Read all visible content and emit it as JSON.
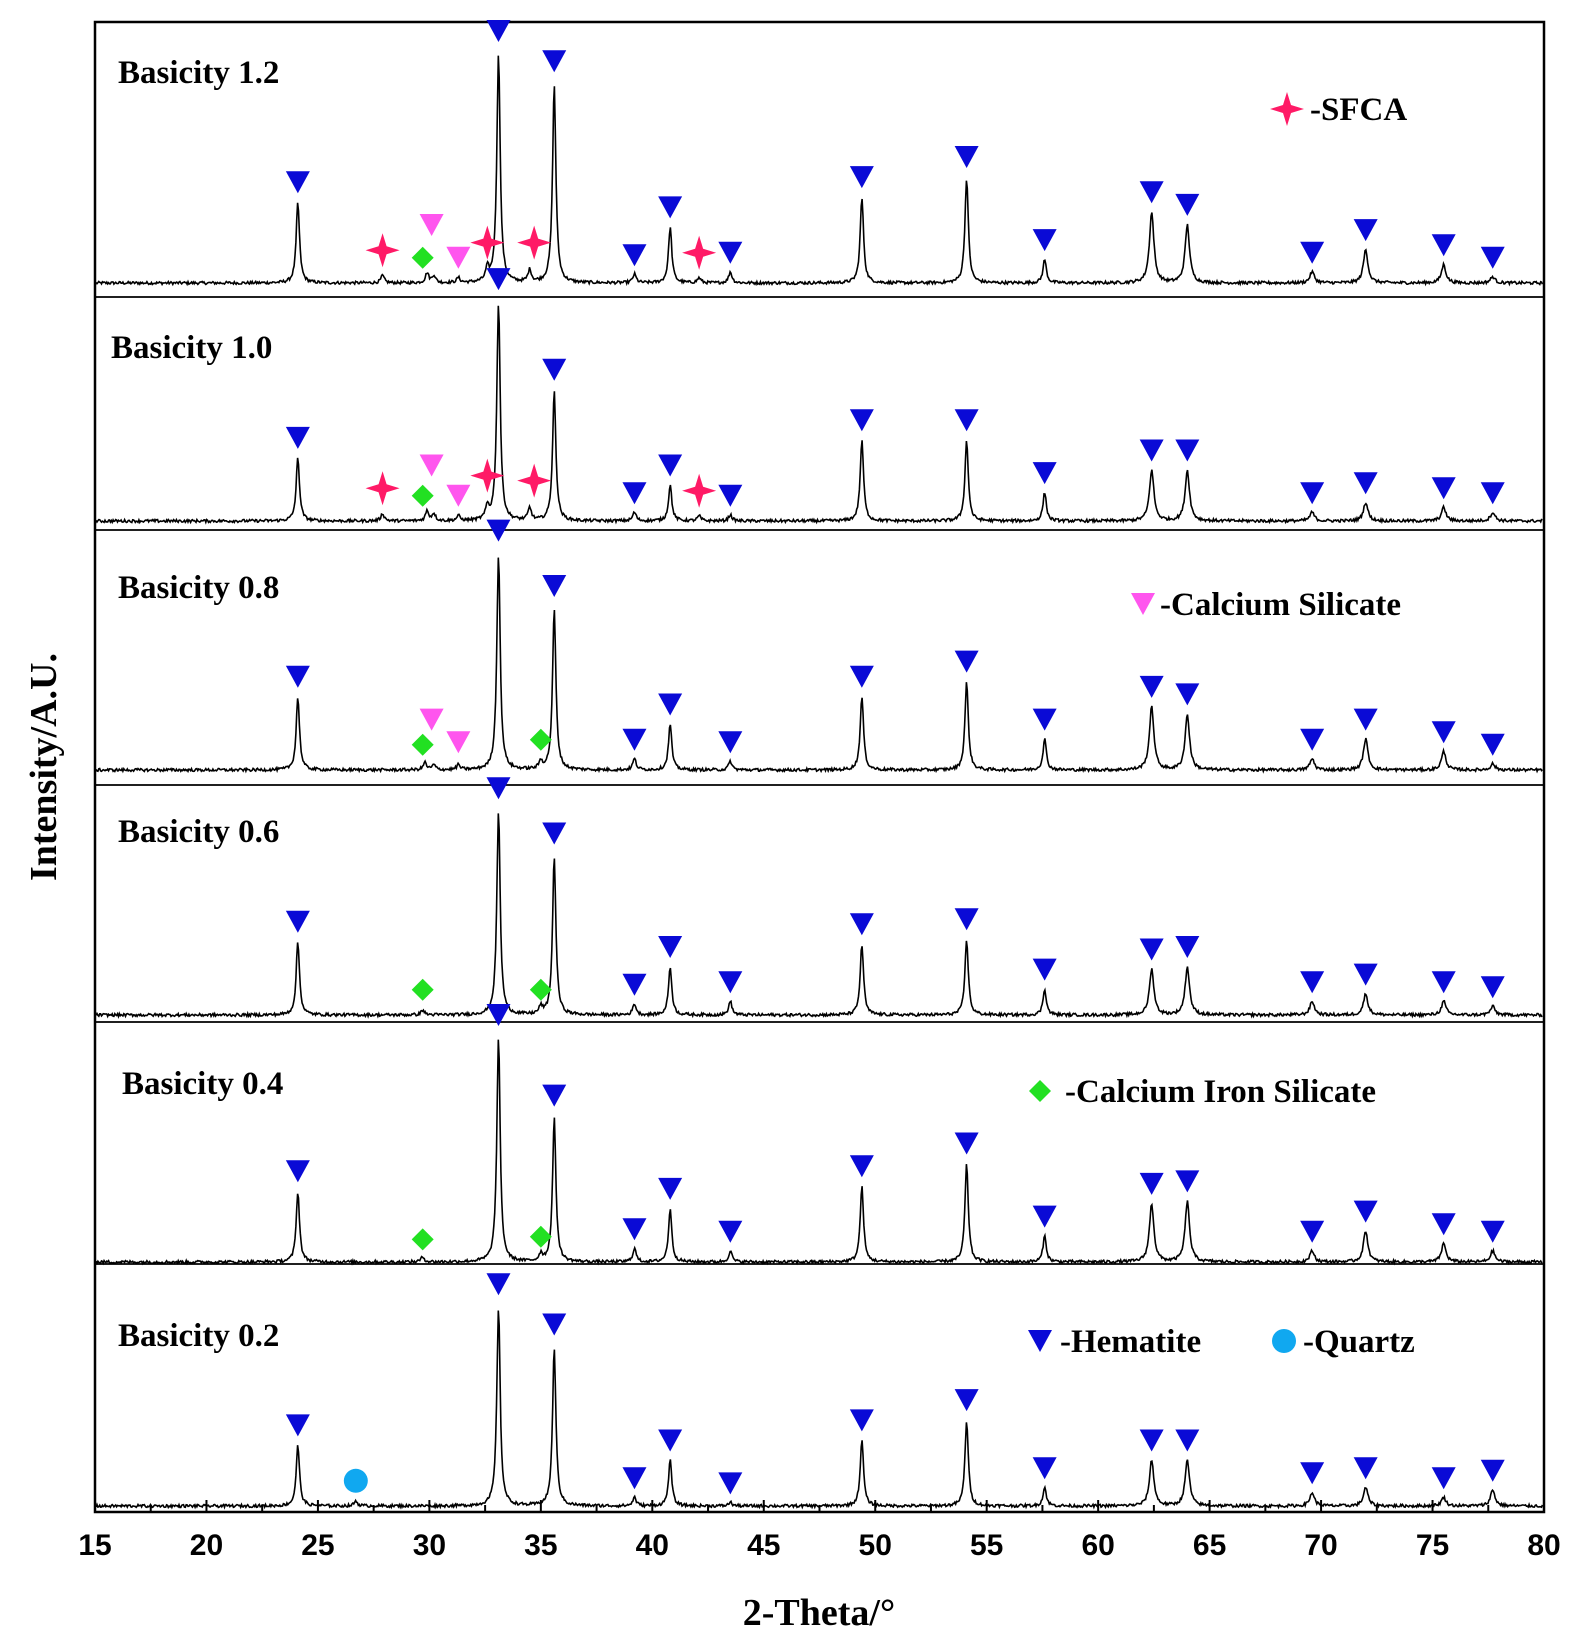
{
  "chart_data": {
    "type": "line",
    "title": "",
    "xlabel": "2-Theta/°",
    "ylabel": "Intensity/A.U.",
    "xlim": [
      15,
      80
    ],
    "xticks": [
      15,
      20,
      25,
      30,
      35,
      40,
      45,
      50,
      55,
      60,
      65,
      70,
      75,
      80
    ],
    "legend": [
      {
        "phase": "SFCA",
        "text": "-SFCA"
      },
      {
        "phase": "calcium_silicate",
        "text": "-Calcium Silicate"
      },
      {
        "phase": "calcium_iron_silicate",
        "text": "-Calcium Iron  Silicate"
      },
      {
        "phase": "hematite",
        "text": "-Hematite"
      },
      {
        "phase": "quartz",
        "text": "-Quartz"
      }
    ],
    "colors": {
      "line": "#000000",
      "hematite": "#0a0ad6",
      "sfca": "#ff1a66",
      "calcium_silicate": "#ff55ee",
      "calcium_iron_silicate": "#22e022",
      "quartz": "#10a8f0"
    },
    "phase_peaks": {
      "hematite": [
        24.1,
        33.1,
        35.6,
        39.2,
        40.8,
        43.5,
        49.4,
        54.1,
        57.6,
        62.4,
        64.0,
        69.6,
        72.0,
        75.5,
        77.7
      ],
      "SFCA": [
        27.9,
        32.6,
        34.7,
        42.1
      ],
      "calcium_silicate": [
        30.1,
        31.3
      ],
      "calcium_iron_silicate": [
        29.7,
        35.0
      ],
      "quartz": [
        26.7
      ]
    },
    "hematite_rel_intensity": [
      0.33,
      1.0,
      0.8,
      0.04,
      0.27,
      0.03,
      0.4,
      0.42,
      0.07,
      0.28,
      0.2,
      0.03,
      0.08,
      0.04,
      0.02
    ],
    "series": [
      {
        "name": "Basicity 1.2",
        "label": "Basicity 1.2",
        "minor_peaks": [
          [
            27.9,
            0.03
          ],
          [
            29.9,
            0.04
          ],
          [
            30.2,
            0.03
          ],
          [
            31.3,
            0.02
          ],
          [
            32.6,
            0.05
          ],
          [
            34.5,
            0.05
          ],
          [
            42.1,
            0.02
          ]
        ],
        "markers": [
          {
            "phase": "hematite",
            "x": 24.1,
            "h": 0.4
          },
          {
            "phase": "hematite",
            "x": 33.1,
            "h": 1.0
          },
          {
            "phase": "hematite",
            "x": 35.6,
            "h": 0.88
          },
          {
            "phase": "hematite",
            "x": 39.2,
            "h": 0.11
          },
          {
            "phase": "hematite",
            "x": 40.8,
            "h": 0.3
          },
          {
            "phase": "hematite",
            "x": 43.5,
            "h": 0.12
          },
          {
            "phase": "hematite",
            "x": 49.4,
            "h": 0.42
          },
          {
            "phase": "hematite",
            "x": 54.1,
            "h": 0.5
          },
          {
            "phase": "hematite",
            "x": 57.6,
            "h": 0.17
          },
          {
            "phase": "hematite",
            "x": 62.4,
            "h": 0.36
          },
          {
            "phase": "hematite",
            "x": 64.0,
            "h": 0.31
          },
          {
            "phase": "hematite",
            "x": 69.6,
            "h": 0.12
          },
          {
            "phase": "hematite",
            "x": 72.0,
            "h": 0.21
          },
          {
            "phase": "hematite",
            "x": 75.5,
            "h": 0.15
          },
          {
            "phase": "hematite",
            "x": 77.7,
            "h": 0.1
          },
          {
            "phase": "SFCA",
            "x": 27.9,
            "h": 0.13
          },
          {
            "phase": "SFCA",
            "x": 32.6,
            "h": 0.16
          },
          {
            "phase": "SFCA",
            "x": 34.7,
            "h": 0.16
          },
          {
            "phase": "SFCA",
            "x": 42.1,
            "h": 0.12
          },
          {
            "phase": "calcium_silicate",
            "x": 30.1,
            "h": 0.23
          },
          {
            "phase": "calcium_silicate",
            "x": 31.3,
            "h": 0.1
          },
          {
            "phase": "calcium_iron_silicate",
            "x": 29.7,
            "h": 0.1
          }
        ]
      },
      {
        "name": "Basicity 1.0",
        "label": "Basicity 1.0",
        "minor_peaks": [
          [
            27.9,
            0.03
          ],
          [
            29.9,
            0.04
          ],
          [
            30.2,
            0.03
          ],
          [
            31.3,
            0.02
          ],
          [
            32.6,
            0.05
          ],
          [
            34.5,
            0.05
          ],
          [
            42.1,
            0.02
          ]
        ],
        "markers": [
          {
            "phase": "hematite",
            "x": 24.1,
            "h": 0.33
          },
          {
            "phase": "hematite",
            "x": 33.1,
            "h": 0.96
          },
          {
            "phase": "hematite",
            "x": 35.6,
            "h": 0.6
          },
          {
            "phase": "hematite",
            "x": 39.2,
            "h": 0.11
          },
          {
            "phase": "hematite",
            "x": 40.8,
            "h": 0.22
          },
          {
            "phase": "hematite",
            "x": 43.5,
            "h": 0.1
          },
          {
            "phase": "hematite",
            "x": 49.4,
            "h": 0.4
          },
          {
            "phase": "hematite",
            "x": 54.1,
            "h": 0.4
          },
          {
            "phase": "hematite",
            "x": 57.6,
            "h": 0.19
          },
          {
            "phase": "hematite",
            "x": 62.4,
            "h": 0.28
          },
          {
            "phase": "hematite",
            "x": 64.0,
            "h": 0.28
          },
          {
            "phase": "hematite",
            "x": 69.6,
            "h": 0.11
          },
          {
            "phase": "hematite",
            "x": 72.0,
            "h": 0.15
          },
          {
            "phase": "hematite",
            "x": 75.5,
            "h": 0.13
          },
          {
            "phase": "hematite",
            "x": 77.7,
            "h": 0.11
          },
          {
            "phase": "SFCA",
            "x": 27.9,
            "h": 0.13
          },
          {
            "phase": "SFCA",
            "x": 32.6,
            "h": 0.18
          },
          {
            "phase": "SFCA",
            "x": 34.7,
            "h": 0.16
          },
          {
            "phase": "SFCA",
            "x": 42.1,
            "h": 0.12
          },
          {
            "phase": "calcium_silicate",
            "x": 30.1,
            "h": 0.22
          },
          {
            "phase": "calcium_silicate",
            "x": 31.3,
            "h": 0.1
          },
          {
            "phase": "calcium_iron_silicate",
            "x": 29.7,
            "h": 0.1
          }
        ]
      },
      {
        "name": "Basicity 0.8",
        "label": "Basicity 0.8",
        "minor_peaks": [
          [
            29.8,
            0.03
          ],
          [
            30.2,
            0.02
          ],
          [
            31.3,
            0.02
          ],
          [
            35.0,
            0.03
          ]
        ],
        "markers": [
          {
            "phase": "hematite",
            "x": 24.1,
            "h": 0.37
          },
          {
            "phase": "hematite",
            "x": 33.1,
            "h": 0.95
          },
          {
            "phase": "hematite",
            "x": 35.6,
            "h": 0.73
          },
          {
            "phase": "hematite",
            "x": 39.2,
            "h": 0.12
          },
          {
            "phase": "hematite",
            "x": 40.8,
            "h": 0.26
          },
          {
            "phase": "hematite",
            "x": 43.5,
            "h": 0.11
          },
          {
            "phase": "hematite",
            "x": 49.4,
            "h": 0.37
          },
          {
            "phase": "hematite",
            "x": 54.1,
            "h": 0.43
          },
          {
            "phase": "hematite",
            "x": 57.6,
            "h": 0.2
          },
          {
            "phase": "hematite",
            "x": 62.4,
            "h": 0.33
          },
          {
            "phase": "hematite",
            "x": 64.0,
            "h": 0.3
          },
          {
            "phase": "hematite",
            "x": 69.6,
            "h": 0.12
          },
          {
            "phase": "hematite",
            "x": 72.0,
            "h": 0.2
          },
          {
            "phase": "hematite",
            "x": 75.5,
            "h": 0.15
          },
          {
            "phase": "hematite",
            "x": 77.7,
            "h": 0.1
          },
          {
            "phase": "calcium_silicate",
            "x": 30.1,
            "h": 0.2
          },
          {
            "phase": "calcium_silicate",
            "x": 31.3,
            "h": 0.11
          },
          {
            "phase": "calcium_iron_silicate",
            "x": 29.7,
            "h": 0.1
          },
          {
            "phase": "calcium_iron_silicate",
            "x": 35.0,
            "h": 0.12
          }
        ]
      },
      {
        "name": "Basicity 0.6",
        "label": "Basicity 0.6",
        "minor_peaks": [
          [
            29.7,
            0.02
          ],
          [
            35.0,
            0.03
          ]
        ],
        "markers": [
          {
            "phase": "hematite",
            "x": 24.1,
            "h": 0.37
          },
          {
            "phase": "hematite",
            "x": 33.1,
            "h": 0.9
          },
          {
            "phase": "hematite",
            "x": 35.6,
            "h": 0.72
          },
          {
            "phase": "hematite",
            "x": 39.2,
            "h": 0.12
          },
          {
            "phase": "hematite",
            "x": 40.8,
            "h": 0.27
          },
          {
            "phase": "hematite",
            "x": 43.5,
            "h": 0.13
          },
          {
            "phase": "hematite",
            "x": 49.4,
            "h": 0.36
          },
          {
            "phase": "hematite",
            "x": 54.1,
            "h": 0.38
          },
          {
            "phase": "hematite",
            "x": 57.6,
            "h": 0.18
          },
          {
            "phase": "hematite",
            "x": 62.4,
            "h": 0.26
          },
          {
            "phase": "hematite",
            "x": 64.0,
            "h": 0.27
          },
          {
            "phase": "hematite",
            "x": 69.6,
            "h": 0.13
          },
          {
            "phase": "hematite",
            "x": 72.0,
            "h": 0.16
          },
          {
            "phase": "hematite",
            "x": 75.5,
            "h": 0.13
          },
          {
            "phase": "hematite",
            "x": 77.7,
            "h": 0.11
          },
          {
            "phase": "calcium_iron_silicate",
            "x": 29.7,
            "h": 0.1
          },
          {
            "phase": "calcium_iron_silicate",
            "x": 35.0,
            "h": 0.1
          }
        ]
      },
      {
        "name": "Basicity 0.4",
        "label": "Basicity 0.4",
        "minor_peaks": [
          [
            29.7,
            0.02
          ],
          [
            35.0,
            0.03
          ]
        ],
        "markers": [
          {
            "phase": "hematite",
            "x": 24.1,
            "h": 0.36
          },
          {
            "phase": "hematite",
            "x": 33.1,
            "h": 0.98
          },
          {
            "phase": "hematite",
            "x": 35.6,
            "h": 0.66
          },
          {
            "phase": "hematite",
            "x": 39.2,
            "h": 0.13
          },
          {
            "phase": "hematite",
            "x": 40.8,
            "h": 0.29
          },
          {
            "phase": "hematite",
            "x": 43.5,
            "h": 0.12
          },
          {
            "phase": "hematite",
            "x": 49.4,
            "h": 0.38
          },
          {
            "phase": "hematite",
            "x": 54.1,
            "h": 0.47
          },
          {
            "phase": "hematite",
            "x": 57.6,
            "h": 0.18
          },
          {
            "phase": "hematite",
            "x": 62.4,
            "h": 0.31
          },
          {
            "phase": "hematite",
            "x": 64.0,
            "h": 0.32
          },
          {
            "phase": "hematite",
            "x": 69.6,
            "h": 0.12
          },
          {
            "phase": "hematite",
            "x": 72.0,
            "h": 0.2
          },
          {
            "phase": "hematite",
            "x": 75.5,
            "h": 0.15
          },
          {
            "phase": "hematite",
            "x": 77.7,
            "h": 0.12
          },
          {
            "phase": "calcium_iron_silicate",
            "x": 29.7,
            "h": 0.09
          },
          {
            "phase": "calcium_iron_silicate",
            "x": 35.0,
            "h": 0.1
          }
        ]
      },
      {
        "name": "Basicity 0.2",
        "label": "Basicity 0.2",
        "minor_peaks": [
          [
            26.7,
            0.02
          ]
        ],
        "markers": [
          {
            "phase": "hematite",
            "x": 24.1,
            "h": 0.32
          },
          {
            "phase": "hematite",
            "x": 33.1,
            "h": 0.88
          },
          {
            "phase": "hematite",
            "x": 35.6,
            "h": 0.72
          },
          {
            "phase": "hematite",
            "x": 39.2,
            "h": 0.11
          },
          {
            "phase": "hematite",
            "x": 40.8,
            "h": 0.26
          },
          {
            "phase": "hematite",
            "x": 43.5,
            "h": 0.09
          },
          {
            "phase": "hematite",
            "x": 49.4,
            "h": 0.34
          },
          {
            "phase": "hematite",
            "x": 54.1,
            "h": 0.42
          },
          {
            "phase": "hematite",
            "x": 57.6,
            "h": 0.15
          },
          {
            "phase": "hematite",
            "x": 62.4,
            "h": 0.26
          },
          {
            "phase": "hematite",
            "x": 64.0,
            "h": 0.26
          },
          {
            "phase": "hematite",
            "x": 69.6,
            "h": 0.13
          },
          {
            "phase": "hematite",
            "x": 72.0,
            "h": 0.15
          },
          {
            "phase": "hematite",
            "x": 75.5,
            "h": 0.11
          },
          {
            "phase": "hematite",
            "x": 77.7,
            "h": 0.14
          },
          {
            "phase": "quartz",
            "x": 26.7,
            "h": 0.1
          }
        ]
      }
    ]
  }
}
